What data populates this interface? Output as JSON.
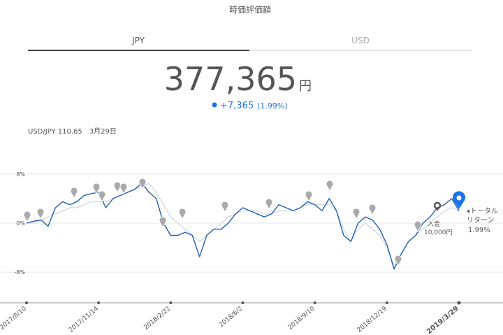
{
  "title": "時価評価額",
  "tabs": [
    "JPY",
    "USD"
  ],
  "valuation": {
    "amount": "377,365",
    "unit": "円",
    "change": "+7,365",
    "change_pct": "(1.99%)"
  },
  "fx_note": "USD/JPY 110.65　3月29日",
  "chart_data": {
    "type": "line",
    "ylim": [
      -13,
      9
    ],
    "yticks": [
      {
        "value": 8,
        "label": "8%"
      },
      {
        "value": 0,
        "label": "0%"
      },
      {
        "value": -8,
        "label": "-8%"
      }
    ],
    "grid": true,
    "xtick_labels": [
      "2017/8/10",
      "2017/11/14",
      "2018/2/22",
      "2018/6/2",
      "2018/9/10",
      "2018/12/19",
      "2019/3/29"
    ],
    "series": [
      {
        "color": "#1f5fb0",
        "values": [
          0,
          0.3,
          0.5,
          -0.5,
          2.5,
          3.5,
          3,
          3.5,
          4.5,
          4.8,
          5,
          2.5,
          4,
          4.5,
          5,
          5.5,
          6.5,
          5,
          4,
          0,
          -2,
          -2,
          -1.5,
          -2,
          -5.5,
          -2,
          -1,
          -1,
          0,
          1.5,
          2.5,
          2,
          1.5,
          1,
          1.5,
          3,
          2.5,
          2,
          2.5,
          3.5,
          3,
          2,
          4,
          2,
          -2,
          -3,
          0,
          1,
          0.5,
          -1,
          -3.5,
          -7.5,
          -5,
          -3,
          -2,
          0,
          1,
          2.5,
          3,
          4,
          2
        ]
      },
      {
        "color": "#d4dbe6",
        "values": [
          0,
          0,
          0.5,
          1,
          1.5,
          2,
          2.5,
          2.5,
          3,
          3.5,
          3.5,
          3.5,
          4,
          4.5,
          5,
          5.5,
          6,
          6.5,
          5,
          3,
          1,
          0,
          -1,
          -2,
          -3,
          -2,
          -1,
          0,
          1,
          1.5,
          2,
          2,
          2,
          1.5,
          1.5,
          2,
          2,
          2,
          2.5,
          3,
          3,
          3,
          3,
          2,
          -1,
          -3,
          -1,
          0,
          -1,
          -2,
          -4,
          -7,
          -5,
          -3,
          -2,
          -1,
          0,
          1,
          2,
          2.5,
          2
        ]
      }
    ],
    "annotations": {
      "deposit": [
        "入金",
        "10,000円"
      ],
      "total_return": [
        "トータル",
        "リターン",
        "1.99%"
      ]
    }
  }
}
